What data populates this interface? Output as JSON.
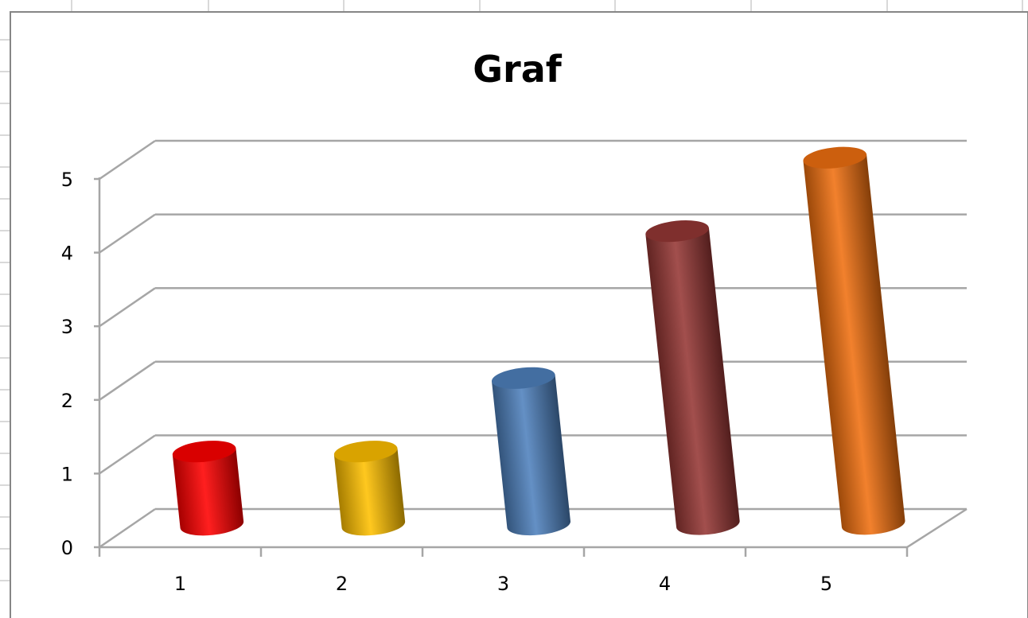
{
  "chart_data": {
    "type": "bar",
    "style": "3d-cylinder",
    "title": "Graf",
    "categories": [
      "1",
      "2",
      "3",
      "4",
      "5"
    ],
    "values": [
      1,
      1,
      2,
      4,
      5
    ],
    "bar_colors": [
      "#ff0000",
      "#ffc000",
      "#4f81bd",
      "#953735",
      "#f07010"
    ],
    "y_ticks": [
      "0",
      "1",
      "2",
      "3",
      "4",
      "5"
    ],
    "ylim": [
      0,
      5
    ],
    "xlabel": "",
    "ylabel": "",
    "grid": true,
    "legend": "none"
  },
  "colors": {
    "gridline": "#a6a6a6",
    "sheet_gridline": "#d9d9d9",
    "chart_border": "#868686"
  }
}
